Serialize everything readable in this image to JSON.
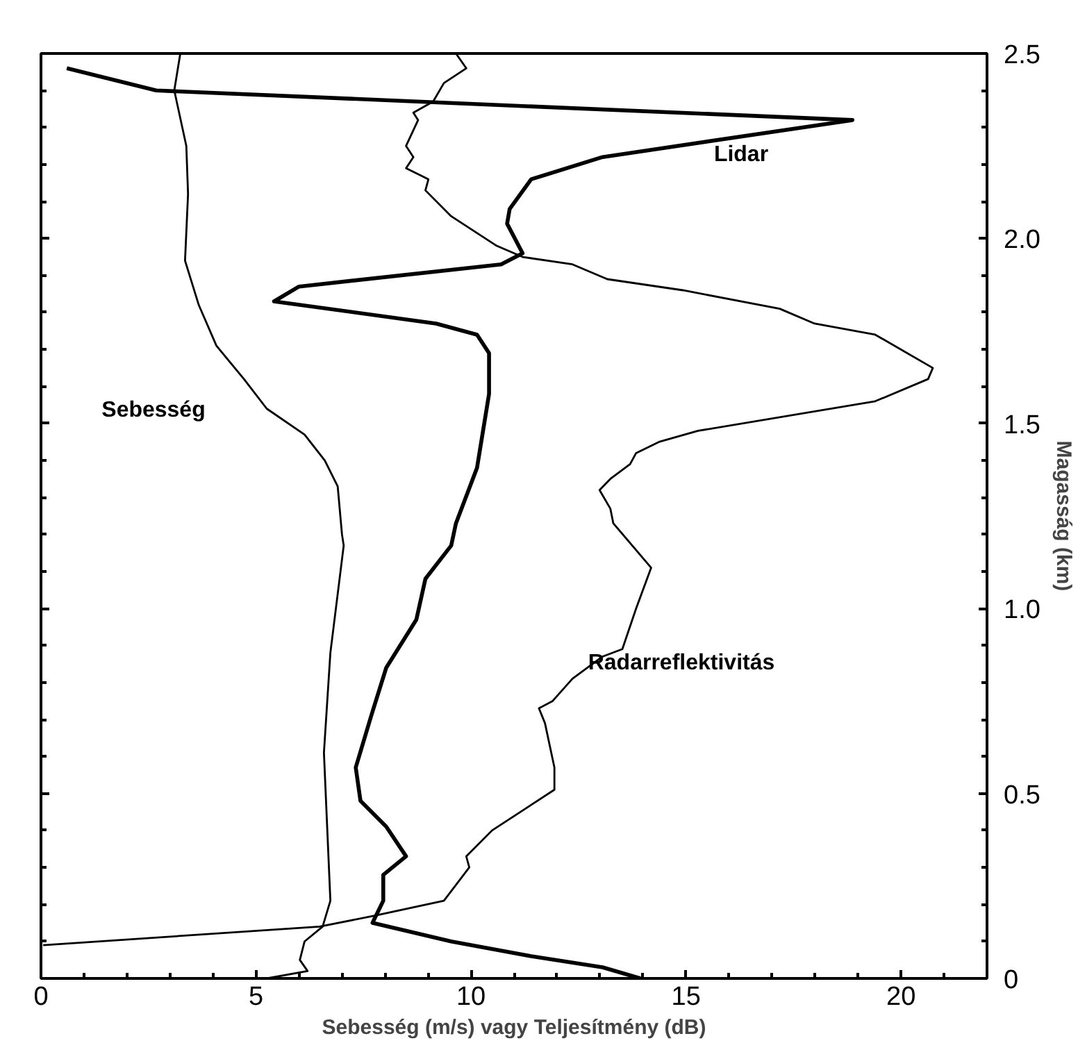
{
  "chart_data": {
    "type": "line",
    "xlabel": "Sebesség (m/s) vagy Teljesítmény (dB)",
    "ylabel": "Magasság (km)",
    "xlim": [
      0,
      22
    ],
    "ylim": [
      0,
      2.5
    ],
    "xticks": [
      0,
      5,
      10,
      15,
      20,
      {
        "value": 1,
        "label": null
      },
      {
        "value": 2,
        "label": null
      },
      {
        "value": 3,
        "label": null
      },
      {
        "value": 4,
        "label": null
      },
      {
        "value": 6,
        "label": null
      },
      {
        "value": 7,
        "label": null
      },
      {
        "value": 8,
        "label": null
      },
      {
        "value": 9,
        "label": null
      },
      {
        "value": 11,
        "label": null
      },
      {
        "value": 12,
        "label": null
      },
      {
        "value": 13,
        "label": null
      },
      {
        "value": 14,
        "label": null
      },
      {
        "value": 16,
        "label": null
      },
      {
        "value": 17,
        "label": null
      },
      {
        "value": 18,
        "label": null
      },
      {
        "value": 19,
        "label": null
      },
      {
        "value": 21,
        "label": null
      }
    ],
    "yticks": [
      0,
      0.5,
      {
        "value": 1,
        "label": "1.0"
      },
      1.5,
      {
        "value": 2,
        "label": "2.0"
      },
      2.5,
      {
        "value": 0.1,
        "label": null
      },
      {
        "value": 0.2,
        "label": null
      },
      {
        "value": 0.3,
        "label": null
      },
      {
        "value": 0.4,
        "label": null
      },
      {
        "value": 0.6,
        "label": null
      },
      {
        "value": 0.7,
        "label": null
      },
      {
        "value": 0.8,
        "label": null
      },
      {
        "value": 0.9,
        "label": null
      },
      {
        "value": 1.1,
        "label": null
      },
      {
        "value": 1.2,
        "label": null
      },
      {
        "value": 1.3,
        "label": null
      },
      {
        "value": 1.4,
        "label": null
      },
      {
        "value": 1.6,
        "label": null
      },
      {
        "value": 1.7,
        "label": null
      },
      {
        "value": 1.8,
        "label": null
      },
      {
        "value": 1.9,
        "label": null
      },
      {
        "value": 2.1,
        "label": null
      },
      {
        "value": 2.2,
        "label": null
      },
      {
        "value": 2.3,
        "label": null
      },
      {
        "value": 2.4,
        "label": null
      }
    ],
    "grid": false,
    "marker": "none",
    "line_style": "solid",
    "series": [
      {
        "name": "Sebesség",
        "color": "#000000",
        "x": [
          3.24,
          3.1,
          3.38,
          3.42,
          3.35,
          3.67,
          4.08,
          4.72,
          5.25,
          6.13,
          6.6,
          6.9,
          7.0,
          7.04,
          6.73,
          6.58,
          6.73,
          6.55,
          6.13,
          6.02,
          6.2,
          5.25
        ],
        "values": [
          2.5,
          2.4,
          2.25,
          2.12,
          1.94,
          1.82,
          1.71,
          1.62,
          1.54,
          1.47,
          1.4,
          1.33,
          1.2,
          1.17,
          0.88,
          0.61,
          0.21,
          0.14,
          0.1,
          0.05,
          0.02,
          0
        ]
      },
      {
        "name": "Lidar",
        "color": "#000000",
        "x": [
          0.6,
          2.68,
          18.87,
          13.06,
          11.4,
          10.9,
          10.84,
          11.2,
          10.7,
          6.0,
          5.42,
          9.19,
          10.14,
          10.42,
          10.42,
          10.14,
          9.65,
          9.54,
          8.94,
          8.73,
          8.03,
          7.68,
          7.32,
          7.43,
          8.03,
          8.49,
          7.96,
          7.96,
          7.71,
          9.54,
          11.4,
          13.06,
          13.94
        ],
        "values": [
          2.46,
          2.4,
          2.32,
          2.22,
          2.16,
          2.08,
          2.04,
          1.96,
          1.93,
          1.87,
          1.83,
          1.77,
          1.74,
          1.69,
          1.58,
          1.38,
          1.23,
          1.17,
          1.08,
          0.97,
          0.84,
          0.71,
          0.57,
          0.48,
          0.41,
          0.33,
          0.28,
          0.21,
          0.15,
          0.1,
          0.06,
          0.03,
          0
        ]
      },
      {
        "name": "Radarreflektivitás",
        "color": "#000000",
        "x": [
          9.65,
          9.89,
          9.37,
          9.12,
          8.66,
          8.77,
          8.49,
          8.66,
          8.49,
          9.01,
          8.94,
          9.54,
          10.6,
          11.2,
          12.36,
          13.17,
          14.93,
          17.18,
          17.99,
          19.4,
          20.74,
          20.63,
          19.4,
          15.28,
          14.37,
          13.84,
          13.7,
          13.24,
          12.99,
          13.24,
          13.31,
          14.19,
          13.84,
          13.52,
          13.06,
          12.36,
          11.9,
          11.58,
          11.72,
          11.94,
          11.94,
          10.49,
          9.89,
          9.96,
          9.37,
          7.78,
          6.48,
          0.05
        ],
        "values": [
          2.5,
          2.46,
          2.42,
          2.37,
          2.34,
          2.32,
          2.25,
          2.22,
          2.19,
          2.16,
          2.13,
          2.06,
          1.98,
          1.95,
          1.93,
          1.89,
          1.86,
          1.81,
          1.77,
          1.74,
          1.65,
          1.62,
          1.56,
          1.48,
          1.45,
          1.42,
          1.39,
          1.35,
          1.32,
          1.27,
          1.23,
          1.11,
          1.0,
          0.89,
          0.87,
          0.81,
          0.75,
          0.73,
          0.69,
          0.57,
          0.51,
          0.4,
          0.33,
          0.3,
          0.21,
          0.17,
          0.14,
          0.09
        ]
      }
    ]
  }
}
